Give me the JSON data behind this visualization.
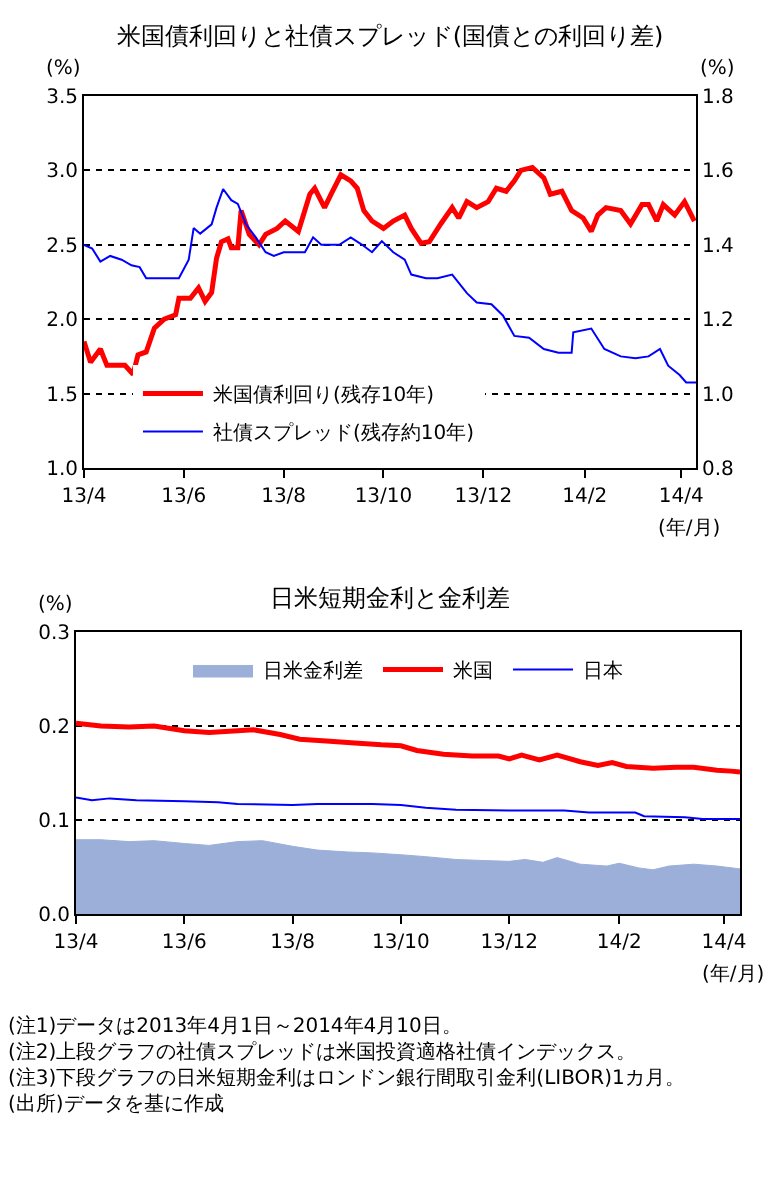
{
  "chart_data": [
    {
      "type": "line",
      "title": "米国債利回りと社債スプレッド(国債との利回り差)",
      "xlabel": "(年/月)",
      "ylabel": "(%)",
      "y2label": "(%)",
      "xlim": [
        "2013-04-01",
        "2014-04-10"
      ],
      "xticks": [
        {
          "value": "2013-04-01",
          "label": "13/4"
        },
        {
          "value": "2013-06-01",
          "label": "13/6"
        },
        {
          "value": "2013-08-01",
          "label": "13/8"
        },
        {
          "value": "2013-10-01",
          "label": "13/10"
        },
        {
          "value": "2013-12-01",
          "label": "13/12"
        },
        {
          "value": "2014-02-01",
          "label": "14/2"
        },
        {
          "value": "2014-04-01",
          "label": "14/4"
        }
      ],
      "ylim": [
        1.0,
        3.5
      ],
      "yticks": [
        {
          "value": 1.0,
          "label": "1.0"
        },
        1.5,
        {
          "value": 2.0,
          "label": "2.0"
        },
        2.5,
        {
          "value": 3.0,
          "label": "3.0"
        },
        3.5
      ],
      "y2lim": [
        0.8,
        1.8
      ],
      "y2ticks": [
        0.8,
        {
          "value": 1.0,
          "label": "1.0"
        },
        1.2,
        1.4,
        1.6,
        1.8
      ],
      "grid": "y",
      "legend": "bottom left",
      "series": [
        {
          "name": "米国債利回り(残存10年)",
          "color": "#ff0000",
          "x": [
            "2013-04-01",
            "2013-04-05",
            "2013-04-11",
            "2013-04-15",
            "2013-04-26",
            "2013-05-01",
            "2013-05-04",
            "2013-05-09",
            "2013-05-14",
            "2013-05-20",
            "2013-05-27",
            "2013-05-29",
            "2013-06-05",
            "2013-06-10",
            "2013-06-14",
            "2013-06-18",
            "2013-06-21",
            "2013-06-24",
            "2013-06-28",
            "2013-06-30",
            "2013-07-04",
            "2013-07-06",
            "2013-07-11",
            "2013-07-17",
            "2013-07-21",
            "2013-07-28",
            "2013-08-02",
            "2013-08-10",
            "2013-08-17",
            "2013-08-20",
            "2013-08-26",
            "2013-08-30",
            "2013-09-05",
            "2013-09-11",
            "2013-09-15",
            "2013-09-19",
            "2013-09-24",
            "2013-10-01",
            "2013-10-07",
            "2013-10-14",
            "2013-10-18",
            "2013-10-24",
            "2013-10-29",
            "2013-11-05",
            "2013-11-12",
            "2013-11-16",
            "2013-11-21",
            "2013-11-27",
            "2013-12-04",
            "2013-12-09",
            "2013-12-15",
            "2013-12-20",
            "2013-12-24",
            "2013-12-31",
            "2014-01-07",
            "2014-01-11",
            "2014-01-18",
            "2014-01-24",
            "2014-01-31",
            "2014-02-05",
            "2014-02-09",
            "2014-02-14",
            "2014-02-23",
            "2014-03-01",
            "2014-03-08",
            "2014-03-12",
            "2014-03-17",
            "2014-03-21",
            "2014-03-28",
            "2014-04-03",
            "2014-04-09"
          ],
          "values": [
            1.85,
            1.71,
            1.8,
            1.69,
            1.69,
            1.63,
            1.76,
            1.78,
            1.94,
            2.0,
            2.03,
            2.14,
            2.14,
            2.21,
            2.12,
            2.18,
            2.41,
            2.52,
            2.54,
            2.48,
            2.48,
            2.73,
            2.57,
            2.5,
            2.57,
            2.61,
            2.66,
            2.59,
            2.84,
            2.88,
            2.75,
            2.84,
            2.97,
            2.93,
            2.88,
            2.73,
            2.66,
            2.61,
            2.66,
            2.7,
            2.61,
            2.51,
            2.52,
            2.64,
            2.75,
            2.68,
            2.79,
            2.75,
            2.79,
            2.88,
            2.86,
            2.93,
            3.0,
            3.02,
            2.95,
            2.84,
            2.86,
            2.73,
            2.68,
            2.59,
            2.7,
            2.75,
            2.73,
            2.64,
            2.77,
            2.77,
            2.66,
            2.77,
            2.7,
            2.79,
            2.66
          ]
        },
        {
          "name": "社債スプレッド(残存約10年)",
          "color": "#0000ff",
          "axis": "y2",
          "x": [
            "2013-04-01",
            "2013-04-06",
            "2013-04-11",
            "2013-04-17",
            "2013-04-24",
            "2013-04-30",
            "2013-05-05",
            "2013-05-09",
            "2013-05-18",
            "2013-05-29",
            "2013-06-04",
            "2013-06-07",
            "2013-06-11",
            "2013-06-18",
            "2013-06-21",
            "2013-06-25",
            "2013-06-30",
            "2013-07-04",
            "2013-07-09",
            "2013-07-15",
            "2013-07-21",
            "2013-07-26",
            "2013-08-01",
            "2013-08-14",
            "2013-08-19",
            "2013-08-24",
            "2013-09-04",
            "2013-09-11",
            "2013-09-18",
            "2013-09-24",
            "2013-09-30",
            "2013-10-07",
            "2013-10-14",
            "2013-10-18",
            "2013-10-27",
            "2013-11-03",
            "2013-11-12",
            "2013-11-21",
            "2013-11-27",
            "2013-12-06",
            "2013-12-13",
            "2013-12-20",
            "2013-12-29",
            "2014-01-07",
            "2014-01-16",
            "2014-01-24",
            "2014-01-25",
            "2014-02-05",
            "2014-02-13",
            "2014-02-23",
            "2014-03-04",
            "2014-03-12",
            "2014-03-19",
            "2014-03-24",
            "2014-03-31",
            "2014-04-04",
            "2014-04-10"
          ],
          "values": [
            1.4,
            1.39,
            1.355,
            1.37,
            1.36,
            1.345,
            1.34,
            1.31,
            1.31,
            1.31,
            1.36,
            1.445,
            1.43,
            1.455,
            1.5,
            1.55,
            1.52,
            1.51,
            1.455,
            1.42,
            1.38,
            1.37,
            1.38,
            1.38,
            1.42,
            1.4,
            1.4,
            1.42,
            1.4,
            1.38,
            1.41,
            1.38,
            1.36,
            1.32,
            1.31,
            1.31,
            1.32,
            1.27,
            1.245,
            1.24,
            1.21,
            1.155,
            1.15,
            1.12,
            1.11,
            1.11,
            1.165,
            1.175,
            1.12,
            1.1,
            1.095,
            1.1,
            1.12,
            1.075,
            1.05,
            1.03,
            1.03
          ]
        }
      ]
    },
    {
      "type": "line",
      "title": "日米短期金利と金利差",
      "xlabel": "(年/月)",
      "ylabel": "(%)",
      "xlim": [
        "2013-04-01",
        "2014-04-10"
      ],
      "xticks": [
        {
          "value": "2013-04-01",
          "label": "13/4"
        },
        {
          "value": "2013-06-01",
          "label": "13/6"
        },
        {
          "value": "2013-08-01",
          "label": "13/8"
        },
        {
          "value": "2013-10-01",
          "label": "13/10"
        },
        {
          "value": "2013-12-01",
          "label": "13/12"
        },
        {
          "value": "2014-02-01",
          "label": "14/2"
        },
        {
          "value": "2014-04-01",
          "label": "14/4"
        }
      ],
      "ylim": [
        0.0,
        0.3
      ],
      "yticks": [
        {
          "value": 0.0,
          "label": "0.0"
        },
        0.1,
        0.2,
        0.3
      ],
      "grid": "y",
      "legend": "top",
      "series": [
        {
          "name": "日米金利差",
          "type": "area",
          "color": "#9bafd9",
          "x": [
            "2013-04-01",
            "2013-04-15",
            "2013-05-01",
            "2013-05-15",
            "2013-06-01",
            "2013-06-15",
            "2013-07-01",
            "2013-07-15",
            "2013-08-01",
            "2013-08-15",
            "2013-09-01",
            "2013-09-15",
            "2013-10-01",
            "2013-10-15",
            "2013-11-01",
            "2013-11-15",
            "2013-12-01",
            "2013-12-10",
            "2013-12-20",
            "2013-12-28",
            "2014-01-10",
            "2014-01-25",
            "2014-02-01",
            "2014-02-12",
            "2014-02-20",
            "2014-03-01",
            "2014-03-15",
            "2014-03-28",
            "2014-04-10"
          ],
          "values": [
            0.079,
            0.079,
            0.077,
            0.078,
            0.075,
            0.073,
            0.077,
            0.078,
            0.072,
            0.068,
            0.066,
            0.065,
            0.063,
            0.061,
            0.058,
            0.057,
            0.056,
            0.058,
            0.055,
            0.06,
            0.053,
            0.051,
            0.054,
            0.049,
            0.047,
            0.051,
            0.053,
            0.051,
            0.048
          ]
        },
        {
          "name": "米国",
          "color": "#ff0000",
          "x": [
            "2013-04-01",
            "2013-04-15",
            "2013-05-01",
            "2013-05-15",
            "2013-06-01",
            "2013-06-15",
            "2013-07-01",
            "2013-07-10",
            "2013-07-25",
            "2013-08-05",
            "2013-08-20",
            "2013-09-05",
            "2013-09-20",
            "2013-10-01",
            "2013-10-10",
            "2013-10-25",
            "2013-11-10",
            "2013-11-25",
            "2013-12-01",
            "2013-12-08",
            "2013-12-18",
            "2013-12-28",
            "2014-01-10",
            "2014-01-20",
            "2014-01-28",
            "2014-02-05",
            "2014-02-20",
            "2014-03-05",
            "2014-03-15",
            "2014-03-28",
            "2014-04-05",
            "2014-04-10"
          ],
          "values": [
            0.203,
            0.2,
            0.199,
            0.2,
            0.195,
            0.193,
            0.195,
            0.196,
            0.191,
            0.186,
            0.184,
            0.182,
            0.18,
            0.179,
            0.174,
            0.17,
            0.168,
            0.168,
            0.165,
            0.169,
            0.164,
            0.169,
            0.162,
            0.158,
            0.161,
            0.157,
            0.155,
            0.156,
            0.156,
            0.153,
            0.152,
            0.151
          ]
        },
        {
          "name": "日本",
          "color": "#0000ff",
          "x": [
            "2013-04-01",
            "2013-04-10",
            "2013-04-20",
            "2013-05-05",
            "2013-06-01",
            "2013-06-20",
            "2013-07-01",
            "2013-08-01",
            "2013-08-15",
            "2013-09-15",
            "2013-10-01",
            "2013-10-15",
            "2013-11-01",
            "2013-12-01",
            "2014-01-01",
            "2014-01-15",
            "2014-02-10",
            "2014-02-15",
            "2014-03-10",
            "2014-03-20",
            "2014-04-10"
          ],
          "values": [
            0.124,
            0.121,
            0.123,
            0.121,
            0.12,
            0.119,
            0.117,
            0.116,
            0.117,
            0.117,
            0.116,
            0.113,
            0.111,
            0.11,
            0.11,
            0.108,
            0.108,
            0.104,
            0.103,
            0.101,
            0.101
          ]
        }
      ],
      "annotations": [
        "(注1)データは2013年4月1日～2014年4月10日。",
        "(注2)上段グラフの社債スプレッドは米国投資適格社債インデックス。",
        "(注3)下段グラフの日米短期金利はロンドン銀行間取引金利(LIBOR)1カ月。",
        "(出所)データを基に作成"
      ]
    }
  ]
}
